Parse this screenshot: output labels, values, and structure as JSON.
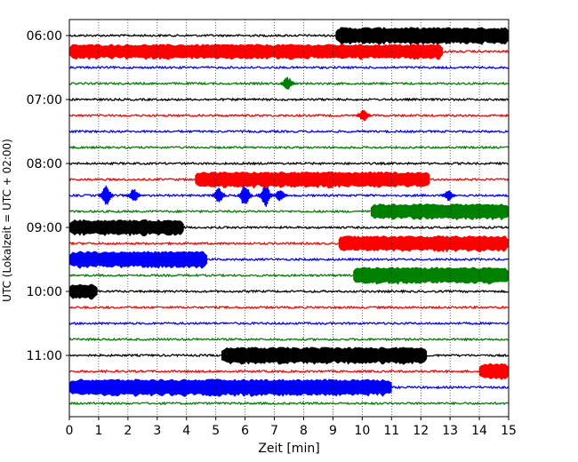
{
  "chart_data": {
    "type": "helicorder",
    "xlabel": "Zeit  [min]",
    "ylabel": "UTC (Lokalzeit = UTC + 02:00)",
    "xlim": [
      0,
      15
    ],
    "x_ticks": [
      "0",
      "1",
      "2",
      "3",
      "4",
      "5",
      "6",
      "7",
      "8",
      "9",
      "10",
      "11",
      "12",
      "13",
      "14",
      "15"
    ],
    "y_tick_labels": [
      "06:00",
      "07:00",
      "08:00",
      "09:00",
      "10:00",
      "11:00"
    ],
    "y_tick_rows": [
      0,
      4,
      8,
      12,
      16,
      20
    ],
    "vertical_grid": "dotted, every 1 min",
    "trace_colors": [
      "#000000",
      "#ff0000",
      "#0000ff",
      "#008000"
    ],
    "rows_per_hour": 4,
    "minutes_per_row": 15,
    "traces": [
      {
        "start": "06:00",
        "events": [
          {
            "type": "block",
            "start": 9.1,
            "end": 15,
            "amp": 0.45
          }
        ]
      },
      {
        "start": "06:15",
        "events": [
          {
            "type": "block",
            "start": 0,
            "end": 12.75,
            "amp": 0.4
          }
        ]
      },
      {
        "start": "06:30",
        "events": []
      },
      {
        "start": "06:45",
        "events": [
          {
            "type": "spike",
            "center": 7.45,
            "amp": 0.45
          }
        ]
      },
      {
        "start": "07:00",
        "events": []
      },
      {
        "start": "07:15",
        "events": [
          {
            "type": "spike",
            "center": 10.05,
            "amp": 0.4
          }
        ]
      },
      {
        "start": "07:30",
        "events": []
      },
      {
        "start": "07:45",
        "events": []
      },
      {
        "start": "08:00",
        "events": []
      },
      {
        "start": "08:15",
        "events": [
          {
            "type": "block",
            "start": 4.3,
            "end": 12.3,
            "amp": 0.42
          }
        ]
      },
      {
        "start": "08:30",
        "events": [
          {
            "type": "spike",
            "center": 1.25,
            "amp": 0.7
          },
          {
            "type": "spike",
            "center": 2.2,
            "amp": 0.45
          },
          {
            "type": "spike",
            "center": 5.1,
            "amp": 0.5
          },
          {
            "type": "spike",
            "center": 6.0,
            "amp": 0.8
          },
          {
            "type": "spike",
            "center": 6.7,
            "amp": 0.75
          },
          {
            "type": "spike",
            "center": 7.2,
            "amp": 0.4
          },
          {
            "type": "spike",
            "center": 12.95,
            "amp": 0.35
          }
        ]
      },
      {
        "start": "08:45",
        "events": [
          {
            "type": "block",
            "start": 10.3,
            "end": 15,
            "amp": 0.42
          }
        ]
      },
      {
        "start": "09:00",
        "events": [
          {
            "type": "block",
            "start": 0,
            "end": 3.9,
            "amp": 0.42
          }
        ]
      },
      {
        "start": "09:15",
        "events": [
          {
            "type": "block",
            "start": 9.2,
            "end": 15,
            "amp": 0.42
          }
        ]
      },
      {
        "start": "09:30",
        "events": [
          {
            "type": "block",
            "start": 0,
            "end": 4.7,
            "amp": 0.45
          }
        ]
      },
      {
        "start": "09:45",
        "events": [
          {
            "type": "block",
            "start": 9.7,
            "end": 15,
            "amp": 0.45
          }
        ]
      },
      {
        "start": "10:00",
        "events": [
          {
            "type": "block",
            "start": 0,
            "end": 0.95,
            "amp": 0.4
          }
        ]
      },
      {
        "start": "10:15",
        "events": []
      },
      {
        "start": "10:30",
        "events": []
      },
      {
        "start": "10:45",
        "events": []
      },
      {
        "start": "11:00",
        "events": [
          {
            "type": "block",
            "start": 5.2,
            "end": 12.2,
            "amp": 0.45
          }
        ]
      },
      {
        "start": "11:15",
        "events": [
          {
            "type": "block",
            "start": 14.0,
            "end": 15,
            "amp": 0.45
          }
        ]
      },
      {
        "start": "11:30",
        "events": [
          {
            "type": "block",
            "start": 0,
            "end": 11.0,
            "amp": 0.45
          }
        ]
      },
      {
        "start": "11:45",
        "events": []
      }
    ]
  }
}
